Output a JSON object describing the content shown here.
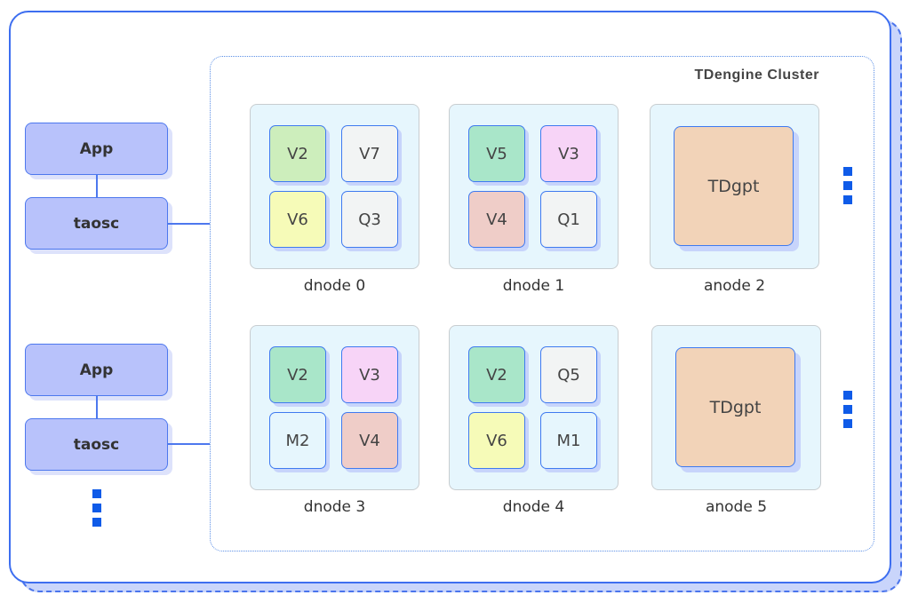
{
  "cluster_title": "TDengine Cluster",
  "clients": [
    {
      "app": "App",
      "driver": "taosc"
    },
    {
      "app": "App",
      "driver": "taosc"
    }
  ],
  "colors": {
    "border": "#3d6ef0",
    "client": "#b8c2fb",
    "node_bg": "#e6f6fd",
    "ellipsis": "#0f5be8"
  },
  "nodes": [
    {
      "label": "dnode 0",
      "cells": [
        {
          "t": "V2",
          "c": "#cdeebc"
        },
        {
          "t": "V7",
          "c": "#f2f4f4"
        },
        {
          "t": "V6",
          "c": "#f6fbb8"
        },
        {
          "t": "Q3",
          "c": "#f2f4f4"
        }
      ]
    },
    {
      "label": "dnode 1",
      "cells": [
        {
          "t": "V5",
          "c": "#a9e6c9"
        },
        {
          "t": "V3",
          "c": "#f7d4f7"
        },
        {
          "t": "V4",
          "c": "#efcdc8"
        },
        {
          "t": "Q1",
          "c": "#f2f4f4"
        }
      ]
    },
    {
      "label": "anode 2",
      "big": {
        "t": "TDgpt",
        "c": "#f2d3b8"
      }
    },
    {
      "label": "dnode 3",
      "cells": [
        {
          "t": "V2",
          "c": "#a9e6c9"
        },
        {
          "t": "V3",
          "c": "#f7d4f7"
        },
        {
          "t": "M2",
          "c": "#e6f6fd"
        },
        {
          "t": "V4",
          "c": "#efcdc8"
        }
      ]
    },
    {
      "label": "dnode 4",
      "cells": [
        {
          "t": "V2",
          "c": "#a9e6c9"
        },
        {
          "t": "Q5",
          "c": "#f2f4f4"
        },
        {
          "t": "V6",
          "c": "#f6fbb8"
        },
        {
          "t": "M1",
          "c": "#e6f6fd"
        }
      ]
    },
    {
      "label": "anode 5",
      "big": {
        "t": "TDgpt",
        "c": "#f2d3b8"
      }
    }
  ]
}
